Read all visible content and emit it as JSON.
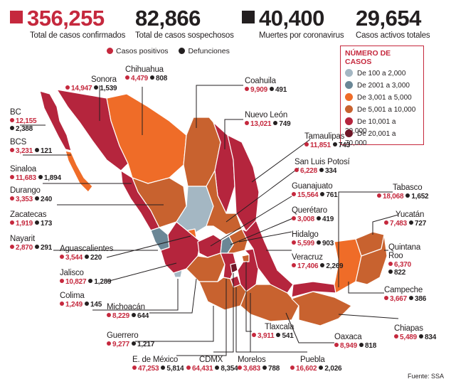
{
  "stats": [
    {
      "value": "356,255",
      "label": "Total de casos confirmados"
    },
    {
      "value": "82,866",
      "label": "Total de casos sospechosos"
    },
    {
      "value": "40,400",
      "label": "Muertes por coronavirus"
    },
    {
      "value": "29,654",
      "label": "Casos activos totales"
    }
  ],
  "mini_legend": {
    "positive": "Casos positivos",
    "deaths": "Defunciones"
  },
  "legend": {
    "title": "NÚMERO DE CASOS",
    "ranges": [
      {
        "label": "De 100 a 2,000",
        "color": "#a4b7c3"
      },
      {
        "label": "De 2001 a 3,000",
        "color": "#6b8796"
      },
      {
        "label": "De 3,001 a 5,000",
        "color": "#ef6c28"
      },
      {
        "label": "De 5,001 a 10,000",
        "color": "#c8622f"
      },
      {
        "label": "De 10,001 a 20,000",
        "color": "#b5253d"
      },
      {
        "label": "De 20,001 a 70,000",
        "color": "#6e1627"
      }
    ]
  },
  "colors": {
    "accent": "#c5283d",
    "deaths": "#231f20"
  },
  "states": [
    {
      "key": "bc",
      "name": "BC",
      "positive": "12,155",
      "deaths": "2,388"
    },
    {
      "key": "bcs",
      "name": "BCS",
      "positive": "3,231",
      "deaths": "121"
    },
    {
      "key": "sinaloa",
      "name": "Sinaloa",
      "positive": "11,683",
      "deaths": "1,894"
    },
    {
      "key": "durango",
      "name": "Durango",
      "positive": "3,353",
      "deaths": "240"
    },
    {
      "key": "zacatecas",
      "name": "Zacatecas",
      "positive": "1,919",
      "deaths": "173"
    },
    {
      "key": "nayarit",
      "name": "Nayarit",
      "positive": "2,870",
      "deaths": "291"
    },
    {
      "key": "ags",
      "name": "Aguascalientes",
      "positive": "3,544",
      "deaths": "220"
    },
    {
      "key": "jalisco",
      "name": "Jalisco",
      "positive": "10,827",
      "deaths": "1,289"
    },
    {
      "key": "colima",
      "name": "Colima",
      "positive": "1,249",
      "deaths": "145"
    },
    {
      "key": "michoacan",
      "name": "Michoacán",
      "positive": "8,229",
      "deaths": "644"
    },
    {
      "key": "guerrero",
      "name": "Guerrero",
      "positive": "9,277",
      "deaths": "1,217"
    },
    {
      "key": "edomex",
      "name": "E. de México",
      "positive": "47,253",
      "deaths": "5,814"
    },
    {
      "key": "cdmx",
      "name": "CDMX",
      "positive": "64,431",
      "deaths": "8,354"
    },
    {
      "key": "morelos",
      "name": "Morelos",
      "positive": "3,683",
      "deaths": "788"
    },
    {
      "key": "puebla",
      "name": "Puebla",
      "positive": "16,602",
      "deaths": "2,026"
    },
    {
      "key": "oaxaca",
      "name": "Oaxaca",
      "positive": "8,949",
      "deaths": "818"
    },
    {
      "key": "chiapas",
      "name": "Chiapas",
      "positive": "5,489",
      "deaths": "834"
    },
    {
      "key": "tlaxcala",
      "name": "Tlaxcala",
      "positive": "3,911",
      "deaths": "541"
    },
    {
      "key": "veracruz",
      "name": "Veracruz",
      "positive": "17,406",
      "deaths": "2,269"
    },
    {
      "key": "hidalgo",
      "name": "Hidalgo",
      "positive": "5,599",
      "deaths": "903"
    },
    {
      "key": "queretaro",
      "name": "Querétaro",
      "positive": "3,008",
      "deaths": "419"
    },
    {
      "key": "guanajuato",
      "name": "Guanajuato",
      "positive": "15,564",
      "deaths": "761"
    },
    {
      "key": "slp",
      "name": "San Luis Potosí",
      "positive": "6,228",
      "deaths": "334"
    },
    {
      "key": "tamaulipas",
      "name": "Tamaulipas",
      "positive": "11,851",
      "deaths": "743"
    },
    {
      "key": "nuevoleon",
      "name": "Nuevo León",
      "positive": "13,021",
      "deaths": "749"
    },
    {
      "key": "coahuila",
      "name": "Coahuila",
      "positive": "9,909",
      "deaths": "491"
    },
    {
      "key": "chihuahua",
      "name": "Chihuahua",
      "positive": "4,479",
      "deaths": "808"
    },
    {
      "key": "sonora",
      "name": "Sonora",
      "positive": "14,947",
      "deaths": "1,539"
    },
    {
      "key": "tabasco",
      "name": "Tabasco",
      "positive": "18,068",
      "deaths": "1,652"
    },
    {
      "key": "yucatan",
      "name": "Yucatán",
      "positive": "7,483",
      "deaths": "727"
    },
    {
      "key": "qroo",
      "name": "Quintana Roo",
      "positive": "6,370",
      "deaths": "822"
    },
    {
      "key": "campeche",
      "name": "Campeche",
      "positive": "3,667",
      "deaths": "386"
    }
  ],
  "source": "Fuente: SSA"
}
